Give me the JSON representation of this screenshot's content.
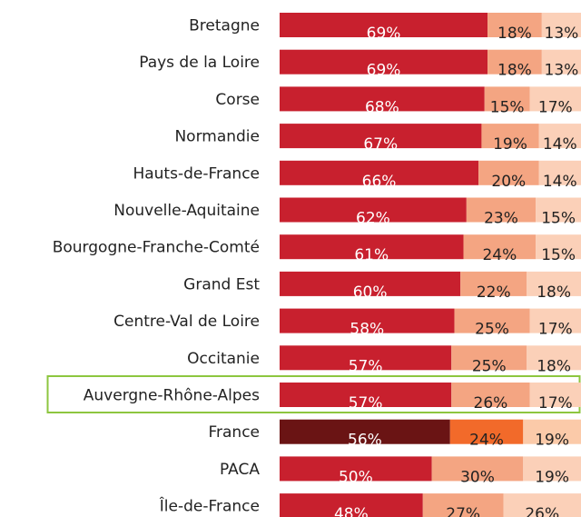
{
  "chart_data": {
    "type": "stacked_bar_h",
    "categories": [
      "Bretagne",
      "Pays de la Loire",
      "Corse",
      "Normandie",
      "Hauts-de-France",
      "Nouvelle-Aquitaine",
      "Bourgogne-Franche-Comté",
      "Grand Est",
      "Centre-Val de Loire",
      "Occitanie",
      "Auvergne-Rhône-Alpes",
      "France",
      "PACA",
      "Île-de-France"
    ],
    "highlight_index": 10,
    "accent_index": 11,
    "series": [
      {
        "color": "#c8202e",
        "accent_color": "#6a1414",
        "label_color": "#ffffff",
        "values": [
          69,
          69,
          68,
          67,
          66,
          62,
          61,
          60,
          58,
          57,
          57,
          56,
          50,
          48
        ],
        "value_labels": [
          "69%",
          "69%",
          "68%",
          "67%",
          "66%",
          "62%",
          "61%",
          "60%",
          "58%",
          "57%",
          "57%",
          "56%",
          "50%",
          "48%"
        ]
      },
      {
        "color": "#f4a582",
        "accent_color": "#f26a2a",
        "label_color": "#222222",
        "values": [
          18,
          18,
          15,
          19,
          20,
          23,
          24,
          22,
          25,
          25,
          26,
          24,
          30,
          27
        ],
        "value_labels": [
          "18%",
          "18%",
          "15%",
          "19%",
          "20%",
          "23%",
          "24%",
          "22%",
          "25%",
          "25%",
          "26%",
          "24%",
          "30%",
          "27%"
        ]
      },
      {
        "color": "#fbd0b8",
        "accent_color": "#fbcaa9",
        "label_color": "#222222",
        "values": [
          13,
          13,
          17,
          14,
          14,
          15,
          15,
          18,
          17,
          18,
          17,
          19,
          19,
          26
        ],
        "value_labels": [
          "13%",
          "13%",
          "17%",
          "14%",
          "14%",
          "15%",
          "15%",
          "18%",
          "17%",
          "18%",
          "17%",
          "19%",
          "19%",
          "26%"
        ]
      }
    ]
  }
}
